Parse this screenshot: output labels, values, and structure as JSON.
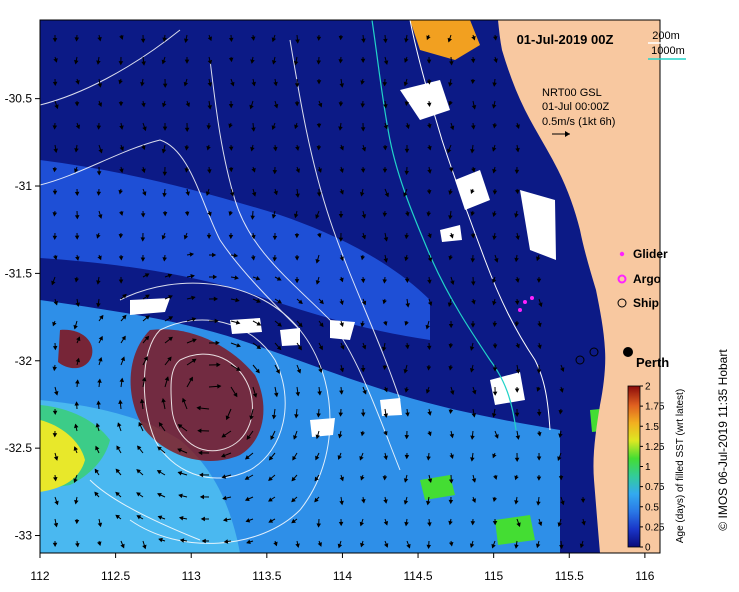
{
  "map": {
    "title": "01-Jul-2019 00Z",
    "product": "NRT00 GSL",
    "product_time": "01-Jul 00:00Z",
    "vector_scale": "0.5m/s (1kt 6h)",
    "isobath_200": "200m",
    "isobath_1000": "1000m",
    "isobath_200_color": "#ffffff",
    "isobath_1000_color": "#22d3c8",
    "land_color": "#f8c8a0",
    "credit": "© IMOS 06-Jul-2019 11:35 Hobart",
    "city": "Perth",
    "legend": [
      {
        "label": "Glider",
        "color": "#ff22ff",
        "symbol": "dot"
      },
      {
        "label": "Argo",
        "color": "#ff22ff",
        "symbol": "ring"
      },
      {
        "label": "Ship",
        "color": "#000000",
        "symbol": "circle"
      }
    ],
    "x_ticks": [
      "112",
      "112.5",
      "113",
      "113.5",
      "114",
      "114.5",
      "115",
      "115.5",
      "116"
    ],
    "y_ticks": [
      "-30.5",
      "-31",
      "-31.5",
      "-32",
      "-32.5",
      "-33"
    ],
    "lon_range": [
      112,
      116.1
    ],
    "lat_range": [
      -33.1,
      -30.05
    ]
  },
  "colorbar": {
    "label": "Age (days) of filled SST (wrt latest)",
    "ticks": [
      "2",
      "1.75",
      "1.5",
      "1.25",
      "1",
      "0.75",
      "0.5",
      "0.25",
      "0"
    ],
    "range": [
      0,
      2
    ],
    "colors": [
      "#0a0a7a",
      "#1a35c8",
      "#2a78e6",
      "#33aaf0",
      "#33cc99",
      "#44dd33",
      "#dde822",
      "#f2b020",
      "#e06020",
      "#8a0a0a"
    ]
  }
}
